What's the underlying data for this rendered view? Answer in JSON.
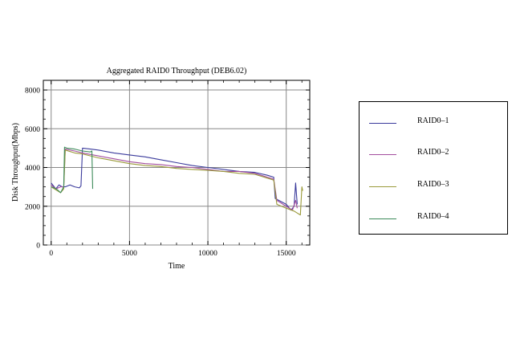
{
  "chart_data": {
    "type": "line",
    "title": "Aggregated RAID0 Throughput (DEB6.02)",
    "xlabel": "Time",
    "ylabel": "Disk Throughput(Mbps)",
    "xlim": [
      -500,
      16500
    ],
    "ylim": [
      0,
      8500
    ],
    "xticks": [
      0,
      5000,
      10000,
      15000
    ],
    "yticks": [
      0,
      2000,
      4000,
      6000,
      8000
    ],
    "grid": true,
    "legend_position": "right",
    "series": [
      {
        "name": "RAID0–1",
        "color": "#3b3b9c",
        "x": [
          0,
          300,
          500,
          700,
          900,
          1200,
          1500,
          1800,
          1900,
          2000,
          2500,
          3000,
          4000,
          5000,
          6000,
          7000,
          8000,
          9000,
          10000,
          11000,
          12000,
          13000,
          13800,
          14200,
          14300,
          15000,
          15300,
          15500,
          15600,
          15700
        ],
        "y": [
          3200,
          2900,
          3100,
          3000,
          3000,
          3100,
          3000,
          2950,
          3050,
          5000,
          4950,
          4900,
          4750,
          4650,
          4550,
          4400,
          4250,
          4100,
          4000,
          3900,
          3800,
          3750,
          3600,
          3500,
          2400,
          2100,
          1800,
          2000,
          3200,
          2100
        ]
      },
      {
        "name": "RAID0–2",
        "color": "#a34e9e",
        "x": [
          0,
          300,
          600,
          800,
          900,
          1500,
          2000,
          3000,
          4000,
          5000,
          6000,
          7000,
          8000,
          9000,
          10000,
          11000,
          12000,
          13000,
          13800,
          14200,
          14400,
          15000,
          15400,
          15600,
          15700
        ],
        "y": [
          3100,
          2900,
          3000,
          3000,
          4950,
          4850,
          4750,
          4600,
          4450,
          4300,
          4200,
          4150,
          4050,
          4000,
          3900,
          3800,
          3800,
          3700,
          3500,
          3400,
          2300,
          2000,
          1800,
          2300,
          1900
        ]
      },
      {
        "name": "RAID0–3",
        "color": "#9a9a3a",
        "x": [
          0,
          300,
          600,
          800,
          900,
          1500,
          2000,
          3000,
          4000,
          5000,
          6000,
          7000,
          8000,
          9000,
          10000,
          11000,
          12000,
          13000,
          13800,
          14200,
          14400,
          15000,
          15500,
          15900,
          16000,
          16050
        ],
        "y": [
          3000,
          2850,
          2700,
          2900,
          4900,
          4750,
          4700,
          4500,
          4350,
          4200,
          4100,
          4050,
          3950,
          3900,
          3850,
          3800,
          3700,
          3650,
          3450,
          3350,
          2100,
          1900,
          1750,
          1550,
          3000,
          2800
        ]
      },
      {
        "name": "RAID0–4",
        "color": "#3d8b5a",
        "x": [
          0,
          200,
          400,
          600,
          800,
          850,
          1000,
          1500,
          2000,
          2500,
          2600,
          2650
        ],
        "y": [
          3000,
          2950,
          2850,
          2700,
          3000,
          5050,
          5000,
          4950,
          4850,
          4800,
          4850,
          2900
        ]
      }
    ]
  }
}
